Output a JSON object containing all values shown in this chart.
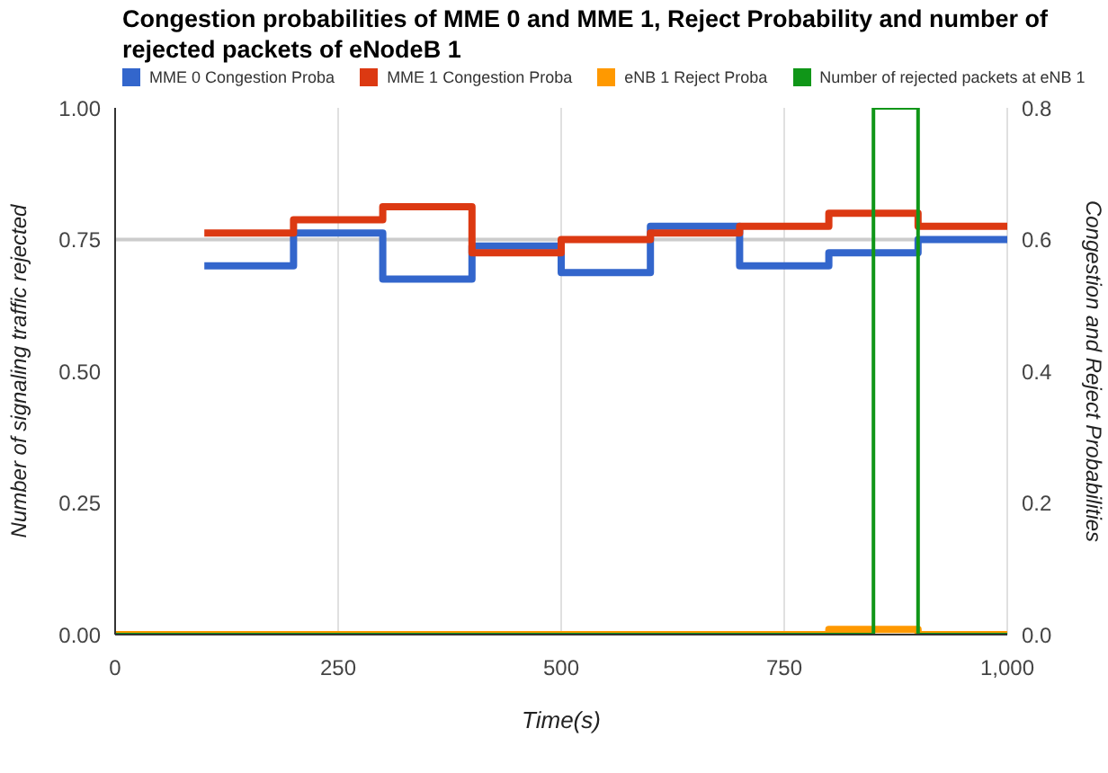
{
  "chart_data": {
    "type": "step",
    "title": "Congestion probabilities of MME 0 and MME 1, Reject Probability and number of rejected packets of eNodeB 1",
    "xlabel": "Time(s)",
    "ylabel": "Number of signaling traffic rejected",
    "y2label": "Congestion and Reject Probabilities",
    "series": [
      {
        "name": "MME 0 Congestion Proba",
        "color": "#3366cc",
        "axis": "y2",
        "x": [
          100,
          200,
          300,
          400,
          500,
          600,
          700,
          800,
          900,
          1000
        ],
        "values": [
          0.56,
          0.61,
          0.54,
          0.59,
          0.55,
          0.62,
          0.56,
          0.58,
          0.6,
          0.6
        ]
      },
      {
        "name": "MME 1 Congestion Proba",
        "color": "#dc3912",
        "axis": "y2",
        "x": [
          100,
          200,
          300,
          400,
          500,
          600,
          700,
          800,
          900,
          1000
        ],
        "values": [
          0.61,
          0.63,
          0.65,
          0.58,
          0.6,
          0.61,
          0.62,
          0.64,
          0.62,
          0.62
        ]
      },
      {
        "name": "eNB 1 Reject Proba",
        "color": "#ff9900",
        "axis": "y2",
        "x": [
          0,
          800,
          900,
          1000
        ],
        "values": [
          0,
          0.008,
          0,
          0
        ]
      },
      {
        "name": "Number of rejected packets at eNB 1",
        "color": "#109618",
        "x": [
          0,
          850,
          900,
          1000
        ],
        "values": [
          0,
          1,
          0,
          0
        ]
      }
    ],
    "xlim": [
      0,
      1000
    ],
    "xticks": [
      0,
      250,
      500,
      750,
      {
        "value": 1000,
        "label": "1,000"
      }
    ],
    "ylim": [
      0,
      1
    ],
    "yticks": [
      {
        "value": 0,
        "label": "0.00"
      },
      {
        "value": 0.25,
        "label": "0.25"
      },
      {
        "value": 0.5,
        "label": "0.50"
      },
      {
        "value": 0.75,
        "label": "0.75"
      },
      {
        "value": 1,
        "label": "1.00"
      }
    ],
    "y2lim": [
      0,
      0.8
    ],
    "y2ticks": [
      {
        "value": 0,
        "label": "0.0"
      },
      {
        "value": 0.2,
        "label": "0.2"
      },
      {
        "value": 0.4,
        "label": "0.4"
      },
      {
        "value": 0.6,
        "label": "0.6"
      },
      {
        "value": 0.8,
        "label": "0.8"
      }
    ],
    "ref_lines": [
      {
        "axis": "y",
        "value": 0.75,
        "color": "#cccccc"
      }
    ],
    "grid": "x",
    "legend": "top",
    "marker": "none",
    "line_style": "solid"
  }
}
